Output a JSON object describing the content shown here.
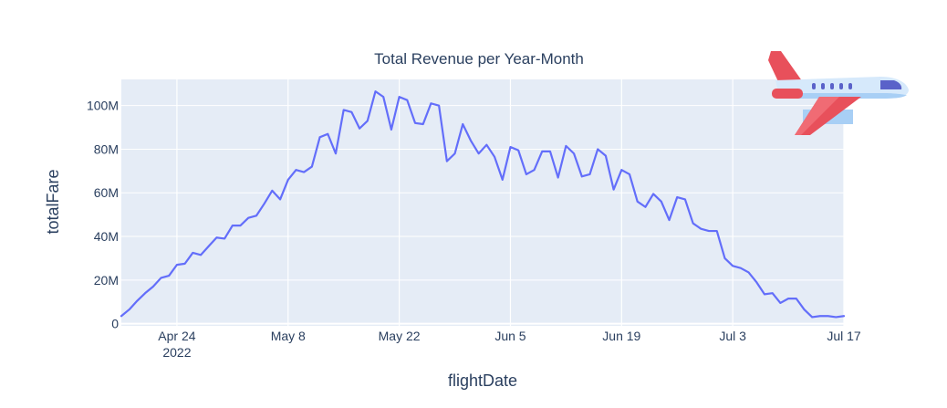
{
  "chart_data": {
    "type": "line",
    "title": "Total Revenue per Year-Month",
    "xlabel": "flightDate",
    "ylabel": "totalFare",
    "x_range": [
      "2022-04-17",
      "2022-07-17"
    ],
    "ylim": [
      -1000000,
      112000000
    ],
    "grid": true,
    "legend": "none",
    "x_ticks": [
      {
        "date": "2022-04-24",
        "label": "Apr 24",
        "sublabel": "2022"
      },
      {
        "date": "2022-05-08",
        "label": "May 8",
        "sublabel": ""
      },
      {
        "date": "2022-05-22",
        "label": "May 22",
        "sublabel": ""
      },
      {
        "date": "2022-06-05",
        "label": "Jun 5",
        "sublabel": ""
      },
      {
        "date": "2022-06-19",
        "label": "Jun 19",
        "sublabel": ""
      },
      {
        "date": "2022-07-03",
        "label": "Jul 3",
        "sublabel": ""
      },
      {
        "date": "2022-07-17",
        "label": "Jul 17",
        "sublabel": ""
      }
    ],
    "y_ticks": [
      {
        "value": 0,
        "label": "0"
      },
      {
        "value": 20000000,
        "label": "20M"
      },
      {
        "value": 40000000,
        "label": "40M"
      },
      {
        "value": 60000000,
        "label": "60M"
      },
      {
        "value": 80000000,
        "label": "80M"
      },
      {
        "value": 100000000,
        "label": "100M"
      }
    ],
    "series": [
      {
        "color": "#636efa",
        "x": [
          "2022-04-17",
          "2022-04-18",
          "2022-04-19",
          "2022-04-20",
          "2022-04-21",
          "2022-04-22",
          "2022-04-23",
          "2022-04-24",
          "2022-04-25",
          "2022-04-26",
          "2022-04-27",
          "2022-04-28",
          "2022-04-29",
          "2022-04-30",
          "2022-05-01",
          "2022-05-02",
          "2022-05-03",
          "2022-05-04",
          "2022-05-05",
          "2022-05-06",
          "2022-05-07",
          "2022-05-08",
          "2022-05-09",
          "2022-05-10",
          "2022-05-11",
          "2022-05-12",
          "2022-05-13",
          "2022-05-14",
          "2022-05-15",
          "2022-05-16",
          "2022-05-17",
          "2022-05-18",
          "2022-05-19",
          "2022-05-20",
          "2022-05-21",
          "2022-05-22",
          "2022-05-23",
          "2022-05-24",
          "2022-05-25",
          "2022-05-26",
          "2022-05-27",
          "2022-05-28",
          "2022-05-29",
          "2022-05-30",
          "2022-05-31",
          "2022-06-01",
          "2022-06-02",
          "2022-06-03",
          "2022-06-04",
          "2022-06-05",
          "2022-06-06",
          "2022-06-07",
          "2022-06-08",
          "2022-06-09",
          "2022-06-10",
          "2022-06-11",
          "2022-06-12",
          "2022-06-13",
          "2022-06-14",
          "2022-06-15",
          "2022-06-16",
          "2022-06-17",
          "2022-06-18",
          "2022-06-19",
          "2022-06-20",
          "2022-06-21",
          "2022-06-22",
          "2022-06-23",
          "2022-06-24",
          "2022-06-25",
          "2022-06-26",
          "2022-06-27",
          "2022-06-28",
          "2022-06-29",
          "2022-06-30",
          "2022-07-01",
          "2022-07-02",
          "2022-07-03",
          "2022-07-04",
          "2022-07-05",
          "2022-07-06",
          "2022-07-07",
          "2022-07-08",
          "2022-07-09",
          "2022-07-10",
          "2022-07-11",
          "2022-07-12",
          "2022-07-13",
          "2022-07-14",
          "2022-07-15",
          "2022-07-16",
          "2022-07-17"
        ],
        "y": [
          3500000,
          6500000,
          10500000,
          14000000,
          17000000,
          21000000,
          22000000,
          27000000,
          27500000,
          32500000,
          31500000,
          35500000,
          39500000,
          39000000,
          45000000,
          45000000,
          48500000,
          49500000,
          55000000,
          61000000,
          57000000,
          66000000,
          70500000,
          69500000,
          72000000,
          85500000,
          87000000,
          78000000,
          98000000,
          97000000,
          89500000,
          93000000,
          106500000,
          104000000,
          89000000,
          104000000,
          102500000,
          92000000,
          91500000,
          101000000,
          100000000,
          74500000,
          78000000,
          91500000,
          84000000,
          78000000,
          82000000,
          76500000,
          66000000,
          81000000,
          79500000,
          68500000,
          70500000,
          79000000,
          79000000,
          67000000,
          81500000,
          78000000,
          67500000,
          68500000,
          80000000,
          77000000,
          61500000,
          70500000,
          68500000,
          56000000,
          53500000,
          59500000,
          56000000,
          47500000,
          58000000,
          57000000,
          46000000,
          43500000,
          42500000,
          42500000,
          30000000,
          26500000,
          25500000,
          23500000,
          19000000,
          13500000,
          14000000,
          9500000,
          11500000,
          11500000,
          6500000,
          3000000,
          3500000,
          3500000,
          3000000,
          3500000
        ]
      }
    ]
  }
}
